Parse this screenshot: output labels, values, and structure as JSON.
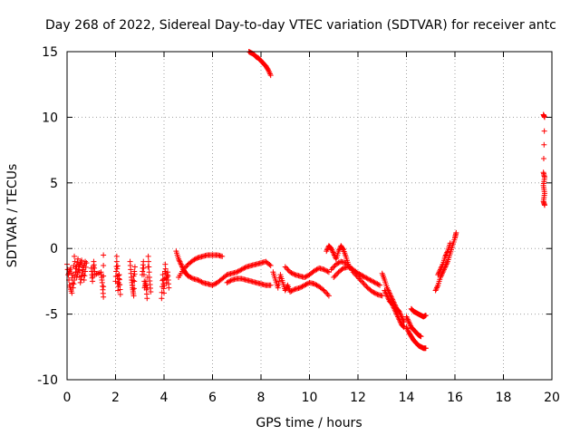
{
  "chart_data": {
    "type": "scatter",
    "title": "Day 268 of 2022, Sidereal Day-to-day VTEC variation (SDTVAR) for receiver antc",
    "xlabel": "GPS time / hours",
    "ylabel": "SDTVAR / TECUs",
    "xlim": [
      0,
      20
    ],
    "ylim": [
      -10,
      15
    ],
    "xticks": [
      "0",
      "2",
      "4",
      "6",
      "8",
      "10",
      "12",
      "14",
      "16",
      "18",
      "20"
    ],
    "yticks": [
      "-10",
      "-5",
      "0",
      "5",
      "10",
      "15"
    ],
    "grid": true,
    "marker": "plus",
    "color": "#ff0000",
    "series": [
      {
        "name": "SDTVAR",
        "segments": [
          [
            [
              0.0,
              -1.2
            ],
            [
              0.1,
              -2.8
            ],
            [
              0.2,
              -3.4
            ],
            [
              0.3,
              -0.6
            ],
            [
              0.4,
              -2.2
            ],
            [
              0.5,
              -1.4
            ],
            [
              0.6,
              -0.9
            ],
            [
              0.7,
              -2.4
            ],
            [
              0.8,
              -1.1
            ]
          ],
          [
            [
              0.05,
              -2.0
            ],
            [
              0.15,
              -1.5
            ],
            [
              0.25,
              -3.0
            ],
            [
              0.35,
              -1.8
            ],
            [
              0.45,
              -0.8
            ],
            [
              0.55,
              -2.6
            ],
            [
              0.65,
              -1.6
            ],
            [
              0.75,
              -1.0
            ]
          ],
          [
            [
              1.0,
              -1.5
            ],
            [
              1.05,
              -2.5
            ],
            [
              1.1,
              -1.0
            ],
            [
              1.15,
              -2.0
            ],
            [
              1.4,
              -1.8
            ],
            [
              1.45,
              -2.6
            ],
            [
              1.5,
              -3.7
            ],
            [
              1.5,
              -0.5
            ]
          ],
          [
            [
              2.0,
              -2.5
            ],
            [
              2.05,
              -1.0
            ],
            [
              2.1,
              -3.2
            ],
            [
              2.15,
              -2.0
            ],
            [
              2.2,
              -3.5
            ],
            [
              2.05,
              -0.6
            ]
          ],
          [
            [
              2.6,
              -1.0
            ],
            [
              2.65,
              -2.2
            ],
            [
              2.7,
              -3.0
            ],
            [
              2.75,
              -3.6
            ],
            [
              2.8,
              -1.4
            ],
            [
              2.7,
              -2.8
            ]
          ],
          [
            [
              3.1,
              -2.0
            ],
            [
              3.15,
              -1.0
            ],
            [
              3.2,
              -3.0
            ],
            [
              3.25,
              -2.5
            ],
            [
              3.3,
              -3.8
            ],
            [
              3.35,
              -0.6
            ],
            [
              3.4,
              -2.2
            ],
            [
              3.45,
              -3.3
            ]
          ],
          [
            [
              3.9,
              -3.8
            ],
            [
              3.95,
              -2.0
            ],
            [
              4.0,
              -3.4
            ],
            [
              4.05,
              -1.2
            ],
            [
              4.1,
              -2.6
            ],
            [
              4.15,
              -1.8
            ],
            [
              4.2,
              -3.0
            ]
          ],
          [
            [
              4.5,
              -0.2
            ],
            [
              4.6,
              -0.8
            ],
            [
              4.7,
              -1.2
            ],
            [
              4.8,
              -1.6
            ],
            [
              4.9,
              -1.9
            ],
            [
              5.0,
              -2.1
            ],
            [
              5.2,
              -2.3
            ],
            [
              5.4,
              -2.4
            ],
            [
              5.6,
              -2.6
            ],
            [
              5.8,
              -2.7
            ],
            [
              6.0,
              -2.8
            ],
            [
              6.2,
              -2.6
            ],
            [
              6.4,
              -2.3
            ],
            [
              6.6,
              -2.0
            ],
            [
              6.8,
              -1.9
            ],
            [
              7.0,
              -1.8
            ],
            [
              7.2,
              -1.6
            ],
            [
              7.4,
              -1.4
            ],
            [
              7.6,
              -1.3
            ],
            [
              7.8,
              -1.2
            ],
            [
              8.0,
              -1.1
            ],
            [
              8.2,
              -1.0
            ],
            [
              8.4,
              -1.3
            ]
          ],
          [
            [
              4.6,
              -2.2
            ],
            [
              4.8,
              -1.6
            ],
            [
              5.0,
              -1.2
            ],
            [
              5.2,
              -0.9
            ],
            [
              5.4,
              -0.7
            ],
            [
              5.6,
              -0.6
            ],
            [
              5.8,
              -0.5
            ],
            [
              6.0,
              -0.5
            ],
            [
              6.2,
              -0.5
            ],
            [
              6.4,
              -0.6
            ]
          ],
          [
            [
              6.6,
              -2.6
            ],
            [
              6.8,
              -2.4
            ],
            [
              7.0,
              -2.3
            ],
            [
              7.2,
              -2.3
            ],
            [
              7.4,
              -2.4
            ],
            [
              7.6,
              -2.5
            ],
            [
              7.8,
              -2.6
            ],
            [
              8.0,
              -2.7
            ],
            [
              8.2,
              -2.8
            ],
            [
              8.4,
              -2.8
            ]
          ],
          [
            [
              8.5,
              -1.8
            ],
            [
              8.6,
              -2.4
            ],
            [
              8.7,
              -3.0
            ],
            [
              8.8,
              -2.0
            ],
            [
              8.9,
              -2.6
            ],
            [
              9.0,
              -3.2
            ],
            [
              9.1,
              -2.8
            ],
            [
              9.2,
              -3.3
            ],
            [
              9.4,
              -3.1
            ],
            [
              9.6,
              -3.0
            ],
            [
              9.8,
              -2.8
            ],
            [
              10.0,
              -2.6
            ],
            [
              10.2,
              -2.7
            ],
            [
              10.4,
              -2.9
            ],
            [
              10.6,
              -3.2
            ],
            [
              10.8,
              -3.6
            ]
          ],
          [
            [
              9.0,
              -1.4
            ],
            [
              9.2,
              -1.8
            ],
            [
              9.4,
              -2.0
            ],
            [
              9.6,
              -2.1
            ],
            [
              9.8,
              -2.2
            ],
            [
              10.0,
              -2.0
            ],
            [
              10.2,
              -1.7
            ],
            [
              10.4,
              -1.5
            ],
            [
              10.6,
              -1.6
            ],
            [
              10.8,
              -1.8
            ]
          ],
          [
            [
              10.7,
              -0.2
            ],
            [
              10.8,
              0.2
            ],
            [
              10.9,
              0.0
            ],
            [
              11.0,
              -0.4
            ],
            [
              11.1,
              -0.8
            ],
            [
              11.2,
              -0.2
            ],
            [
              11.3,
              0.2
            ],
            [
              11.4,
              -0.1
            ],
            [
              11.5,
              -0.6
            ],
            [
              11.6,
              -1.2
            ],
            [
              11.8,
              -1.8
            ],
            [
              12.0,
              -2.2
            ],
            [
              12.2,
              -2.6
            ],
            [
              12.4,
              -3.0
            ],
            [
              12.6,
              -3.3
            ],
            [
              12.8,
              -3.5
            ],
            [
              13.0,
              -3.6
            ]
          ],
          [
            [
              10.9,
              -1.6
            ],
            [
              11.1,
              -1.2
            ],
            [
              11.3,
              -1.0
            ],
            [
              11.5,
              -1.1
            ],
            [
              11.7,
              -1.5
            ],
            [
              11.9,
              -1.8
            ],
            [
              12.1,
              -2.0
            ],
            [
              12.3,
              -2.2
            ],
            [
              12.5,
              -2.4
            ],
            [
              12.7,
              -2.6
            ],
            [
              12.9,
              -2.8
            ]
          ],
          [
            [
              11.0,
              -2.2
            ],
            [
              11.2,
              -1.8
            ],
            [
              11.4,
              -1.5
            ],
            [
              11.6,
              -1.4
            ],
            [
              11.8,
              -1.6
            ],
            [
              12.0,
              -1.9
            ],
            [
              12.2,
              -2.1
            ]
          ],
          [
            [
              13.0,
              -1.9
            ],
            [
              13.1,
              -2.4
            ],
            [
              13.2,
              -3.0
            ],
            [
              13.3,
              -3.4
            ],
            [
              13.4,
              -3.8
            ],
            [
              13.5,
              -4.2
            ],
            [
              13.6,
              -4.6
            ],
            [
              13.7,
              -4.8
            ],
            [
              13.8,
              -5.2
            ],
            [
              13.9,
              -5.6
            ]
          ],
          [
            [
              13.1,
              -3.2
            ],
            [
              13.2,
              -3.6
            ],
            [
              13.3,
              -4.0
            ],
            [
              13.4,
              -4.2
            ],
            [
              13.5,
              -4.6
            ],
            [
              13.6,
              -5.0
            ],
            [
              13.7,
              -5.4
            ],
            [
              13.8,
              -5.8
            ],
            [
              13.9,
              -6.0
            ]
          ],
          [
            [
              14.0,
              -6.0
            ],
            [
              14.1,
              -6.4
            ],
            [
              14.2,
              -6.7
            ],
            [
              14.3,
              -7.0
            ],
            [
              14.4,
              -7.2
            ],
            [
              14.5,
              -7.4
            ],
            [
              14.6,
              -7.5
            ],
            [
              14.7,
              -7.6
            ],
            [
              14.8,
              -7.6
            ]
          ],
          [
            [
              14.0,
              -5.2
            ],
            [
              14.1,
              -5.6
            ],
            [
              14.2,
              -6.0
            ],
            [
              14.3,
              -6.2
            ],
            [
              14.4,
              -6.4
            ],
            [
              14.5,
              -6.6
            ],
            [
              14.6,
              -6.7
            ]
          ],
          [
            [
              14.2,
              -4.6
            ],
            [
              14.3,
              -4.8
            ],
            [
              14.4,
              -4.9
            ],
            [
              14.5,
              -5.0
            ],
            [
              14.6,
              -5.1
            ],
            [
              14.7,
              -5.2
            ],
            [
              14.8,
              -5.1
            ]
          ],
          [
            [
              15.2,
              -3.2
            ],
            [
              15.3,
              -2.8
            ],
            [
              15.4,
              -2.2
            ],
            [
              15.5,
              -1.8
            ],
            [
              15.6,
              -1.4
            ],
            [
              15.7,
              -1.0
            ],
            [
              15.8,
              -0.4
            ],
            [
              15.9,
              0.2
            ],
            [
              16.0,
              0.8
            ],
            [
              16.05,
              1.2
            ]
          ],
          [
            [
              15.3,
              -2.0
            ],
            [
              15.4,
              -1.6
            ],
            [
              15.5,
              -1.2
            ],
            [
              15.6,
              -0.6
            ],
            [
              15.7,
              -0.2
            ],
            [
              15.8,
              0.4
            ]
          ],
          [
            [
              7.5,
              15.0
            ],
            [
              7.6,
              14.9
            ],
            [
              7.7,
              14.8
            ],
            [
              7.8,
              14.6
            ],
            [
              7.9,
              14.5
            ],
            [
              8.0,
              14.3
            ],
            [
              8.1,
              14.1
            ],
            [
              8.2,
              13.9
            ],
            [
              8.3,
              13.6
            ],
            [
              8.4,
              13.2
            ]
          ],
          [
            [
              19.65,
              10.2
            ],
            [
              19.7,
              10.0
            ],
            [
              19.65,
              5.8
            ],
            [
              19.7,
              5.4
            ],
            [
              19.65,
              4.8
            ],
            [
              19.7,
              4.2
            ],
            [
              19.65,
              3.6
            ],
            [
              19.7,
              3.3
            ]
          ]
        ]
      }
    ]
  }
}
